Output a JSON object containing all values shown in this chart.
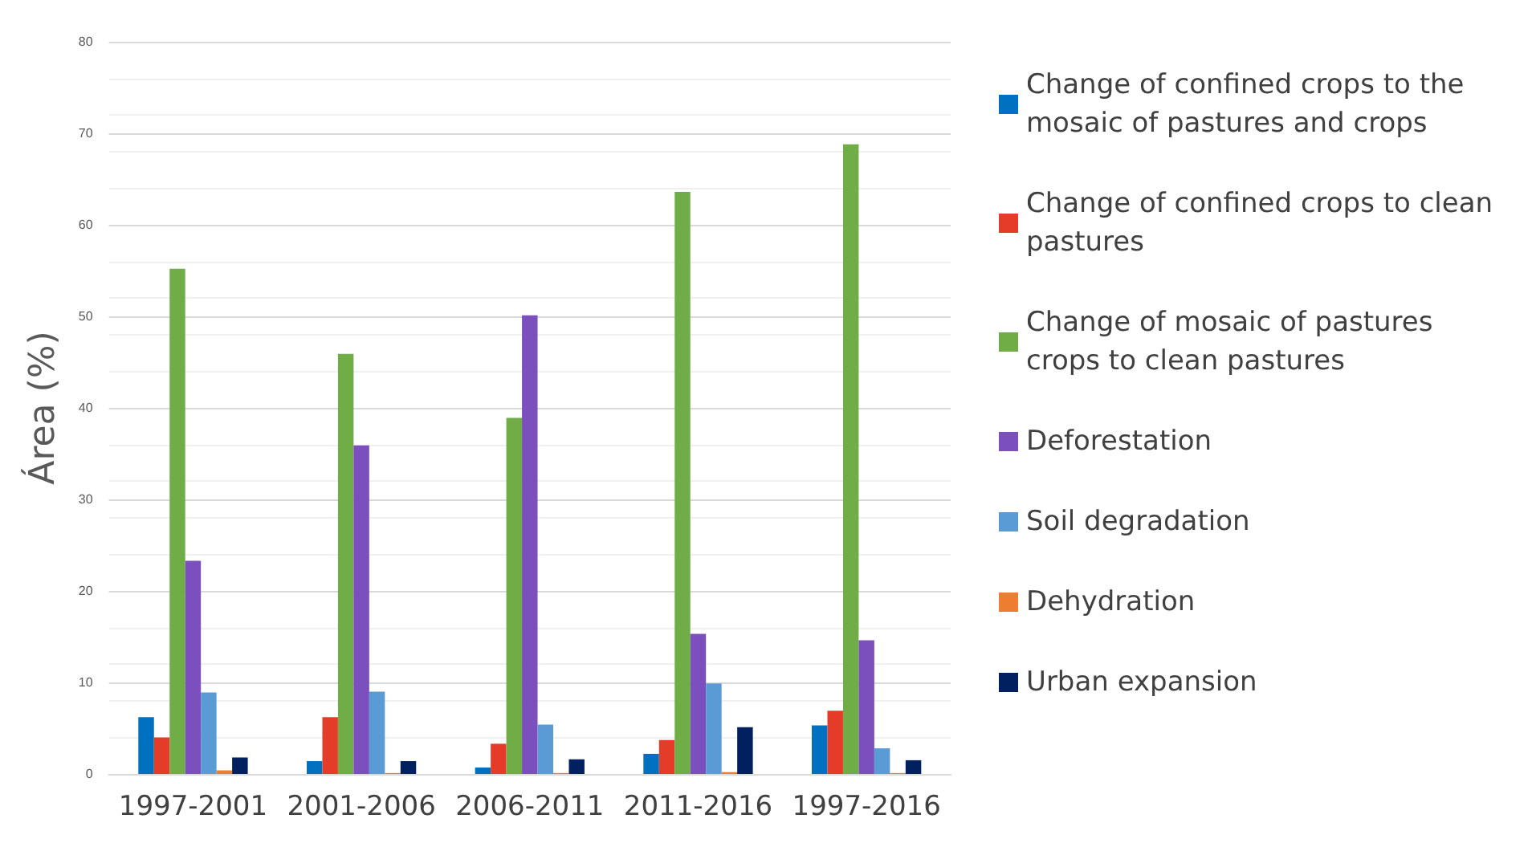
{
  "chart_data": {
    "type": "bar",
    "ylabel": "Área (%)",
    "categories": [
      "1997-2001",
      "2001-2006",
      "2006-2011",
      "2011-2016",
      "1997-2016"
    ],
    "series": [
      {
        "name": "Change of confined crops to the mosaic of pastures and crops",
        "color": "#0070c0",
        "values": [
          6.2,
          1.4,
          0.7,
          2.2,
          5.3
        ]
      },
      {
        "name": "Change of confined crops to clean pastures",
        "color": "#e53c2a",
        "values": [
          4.0,
          6.2,
          3.3,
          3.7,
          6.9
        ]
      },
      {
        "name": "Change of mosaic of pastures crops to clean pastures",
        "color": "#70ad47",
        "values": [
          55.2,
          45.9,
          38.9,
          63.6,
          68.8
        ]
      },
      {
        "name": "Deforestation",
        "color": "#7b4fbd",
        "values": [
          23.3,
          35.9,
          50.1,
          15.3,
          14.6
        ]
      },
      {
        "name": "Soil degradation",
        "color": "#5b9bd5",
        "values": [
          8.9,
          9.0,
          5.4,
          9.9,
          2.8
        ]
      },
      {
        "name": "Dehydration",
        "color": "#ed7d31",
        "values": [
          0.4,
          0.1,
          0.1,
          0.2,
          0.1
        ]
      },
      {
        "name": "Urban expansion",
        "color": "#002060",
        "values": [
          1.8,
          1.4,
          1.6,
          5.1,
          1.5
        ]
      }
    ],
    "ylim": [
      0,
      80
    ],
    "yticks": [
      0,
      10,
      20,
      30,
      40,
      50,
      60,
      70,
      80
    ],
    "grid": "y",
    "legend": "right"
  }
}
